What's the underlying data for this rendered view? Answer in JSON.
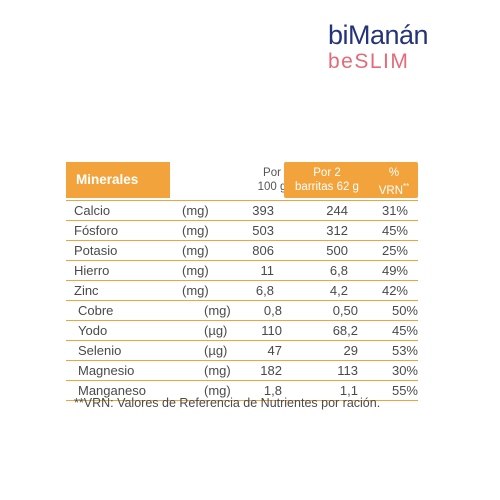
{
  "brand": {
    "name_top": "biManán",
    "name_bottom": "beSLIM"
  },
  "table": {
    "header": {
      "col_name": "Minerales",
      "col_per100_line1": "Por",
      "col_per100_line2": "100 g",
      "col_per2_line1": "Por 2",
      "col_per2_line2": "barritas 62 g",
      "col_vrn_line1": "%",
      "col_vrn_line2": "VRN",
      "col_vrn_sup": "**"
    },
    "rows": [
      {
        "name": "Calcio",
        "unit": "(mg)",
        "per100": "393",
        "per2": "244",
        "vrn": "31%"
      },
      {
        "name": "Fósforo",
        "unit": "(mg)",
        "per100": "503",
        "per2": "312",
        "vrn": "45%"
      },
      {
        "name": "Potasio",
        "unit": "(mg)",
        "per100": "806",
        "per2": "500",
        "vrn": "25%"
      },
      {
        "name": "Hierro",
        "unit": "(mg)",
        "per100": "11",
        "per2": "6,8",
        "vrn": "49%"
      },
      {
        "name": "Zinc",
        "unit": "(mg)",
        "per100": "6,8",
        "per2": "4,2",
        "vrn": "42%"
      },
      {
        "name": "Cobre",
        "unit": "(mg)",
        "per100": "0,8",
        "per2": "0,50",
        "vrn": "50%"
      },
      {
        "name": "Yodo",
        "unit": "(µg)",
        "per100": "110",
        "per2": "68,2",
        "vrn": "45%"
      },
      {
        "name": "Selenio",
        "unit": "(µg)",
        "per100": "47",
        "per2": "29",
        "vrn": "53%"
      },
      {
        "name": "Magnesio",
        "unit": "(mg)",
        "per100": "182",
        "per2": "113",
        "vrn": "30%"
      },
      {
        "name": "Manganeso",
        "unit": "(mg)",
        "per100": "1,8",
        "per2": "1,1",
        "vrn": "55%"
      }
    ]
  },
  "footnote": "**VRN: Valores de Referencia de Nutrientes por ración.",
  "colors": {
    "accent": "#f3a33b",
    "brand_blue": "#25337a",
    "brand_pink": "#e46a78"
  }
}
